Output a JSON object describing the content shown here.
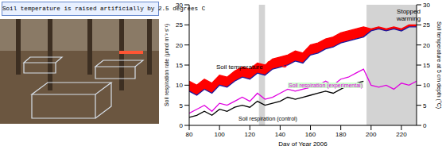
{
  "caption": "Soil temperature is raised artificially by 2.5 degrees C",
  "chart_data": {
    "type": "line",
    "x_label": "Day of Year 2006",
    "y_label": "Soil respiration rate (μmol m⁻² s⁻¹)",
    "y2_label": "Soil temperature at 5 cm depth (°C)",
    "xlim": [
      80,
      230
    ],
    "xticks": [
      80,
      100,
      120,
      140,
      160,
      180,
      200,
      220
    ],
    "ylim": [
      0,
      30
    ],
    "yticks": [
      0,
      5,
      10,
      15,
      20,
      25,
      30
    ],
    "y2lim": [
      0,
      30
    ],
    "y2ticks": [
      0,
      5,
      10,
      15,
      20,
      25,
      30
    ],
    "x": [
      80,
      85,
      90,
      95,
      100,
      105,
      110,
      115,
      120,
      125,
      130,
      135,
      140,
      145,
      150,
      155,
      160,
      165,
      170,
      175,
      180,
      185,
      190,
      195,
      200,
      205,
      210,
      215,
      220,
      225,
      230
    ],
    "series": [
      {
        "color": "#ff0000",
        "axis": "y2",
        "values": [
          11,
          10,
          11.5,
          10.5,
          12.5,
          12,
          13.5,
          14.5,
          14,
          15.5,
          15,
          16.5,
          17,
          17.5,
          18.5,
          18,
          20,
          20.5,
          21.5,
          22,
          23,
          23.5,
          24,
          24.5,
          24,
          24.5,
          24,
          24.5,
          24,
          25,
          25
        ]
      },
      {
        "color": "#1a1aa0",
        "axis": "y2",
        "values": [
          8.5,
          7.5,
          9,
          8,
          10,
          9.5,
          11,
          12,
          11.5,
          13,
          12.5,
          14,
          14.5,
          15,
          16,
          15.5,
          17.5,
          18,
          19,
          19.5,
          20.5,
          21,
          21.5,
          22,
          23.5,
          24,
          23.5,
          24,
          23.5,
          24.5,
          24.5
        ]
      },
      {
        "name": "Soil respiration (experimental)",
        "color": "#e000e0",
        "values": [
          3,
          4,
          5,
          3.5,
          5.5,
          5,
          6,
          7,
          6,
          8,
          6.5,
          7,
          8,
          9,
          8.5,
          9,
          9.5,
          10,
          11,
          10,
          11.5,
          12,
          13,
          14,
          10,
          9.5,
          10,
          9,
          10.5,
          10,
          11
        ]
      },
      {
        "name": "Soil respiration (control)",
        "color": "#000000",
        "values": [
          2,
          2.5,
          3.5,
          2.5,
          4,
          3.5,
          4.5,
          5,
          4.5,
          6,
          5,
          5.5,
          6,
          7,
          6.5,
          7,
          7.5,
          8,
          8.5,
          8,
          9,
          10,
          10.5,
          11,
          null,
          null,
          null,
          null,
          null,
          null,
          null
        ]
      }
    ],
    "bands": [
      [
        126,
        130
      ],
      [
        197,
        230
      ]
    ],
    "annotations": [
      {
        "text": "Soil temperature",
        "color": "#000000"
      },
      {
        "text": "2.5°C",
        "color": "#ff0000"
      },
      {
        "text": "Stopped warming",
        "color": "#000000"
      }
    ]
  }
}
